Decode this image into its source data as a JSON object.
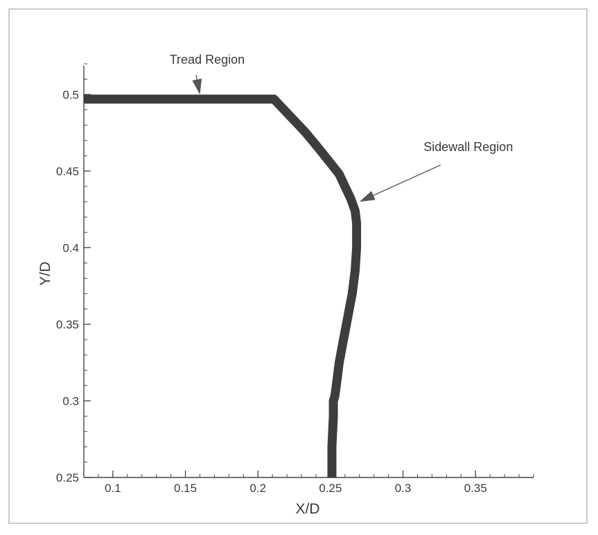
{
  "colors": {
    "background": "#ffffff",
    "frame": "#c9c9c9",
    "axis": "#444444",
    "text": "#3a3a3a",
    "curve": "#3d3d3d",
    "arrow": "#555555"
  },
  "chart_data": {
    "type": "line",
    "title": "",
    "xlabel": "X/D",
    "ylabel": "Y/D",
    "xlim": [
      0.08,
      0.39
    ],
    "ylim": [
      0.25,
      0.53
    ],
    "xticks": [
      {
        "value": 0.1,
        "label": "0.1"
      },
      {
        "value": 0.15,
        "label": "0.15"
      },
      {
        "value": 0.2,
        "label": "0.2"
      },
      {
        "value": 0.25,
        "label": "0.25"
      },
      {
        "value": 0.3,
        "label": "0.3"
      },
      {
        "value": 0.35,
        "label": "0.35"
      }
    ],
    "yticks": [
      {
        "value": 0.25,
        "label": "0.25"
      },
      {
        "value": 0.3,
        "label": "0.3"
      },
      {
        "value": 0.35,
        "label": "0.35"
      },
      {
        "value": 0.4,
        "label": "0.4"
      },
      {
        "value": 0.45,
        "label": "0.45"
      },
      {
        "value": 0.5,
        "label": "0.5"
      }
    ],
    "grid": false,
    "series": [
      {
        "x": [
          0.08,
          0.12,
          0.16,
          0.2,
          0.211,
          0.217,
          0.225,
          0.233,
          0.24,
          0.246,
          0.251,
          0.256,
          0.26,
          0.264,
          0.267,
          0.268,
          0.268,
          0.267,
          0.265,
          0.262,
          0.259,
          0.256,
          0.254,
          0.253,
          0.252,
          0.252,
          0.251,
          0.251
        ],
        "y": [
          0.497,
          0.497,
          0.497,
          0.497,
          0.497,
          0.491,
          0.483,
          0.475,
          0.467,
          0.46,
          0.454,
          0.448,
          0.44,
          0.432,
          0.424,
          0.416,
          0.4,
          0.385,
          0.37,
          0.355,
          0.34,
          0.325,
          0.31,
          0.303,
          0.3,
          0.29,
          0.27,
          0.25
        ]
      }
    ],
    "annotations": [
      {
        "text": "Tread Region",
        "x": 0.165,
        "y": 0.52,
        "arrow_to": [
          0.16,
          0.5
        ]
      },
      {
        "text": "Sidewall Region",
        "x": 0.345,
        "y": 0.463,
        "arrow_to": [
          0.27,
          0.43
        ]
      }
    ]
  }
}
